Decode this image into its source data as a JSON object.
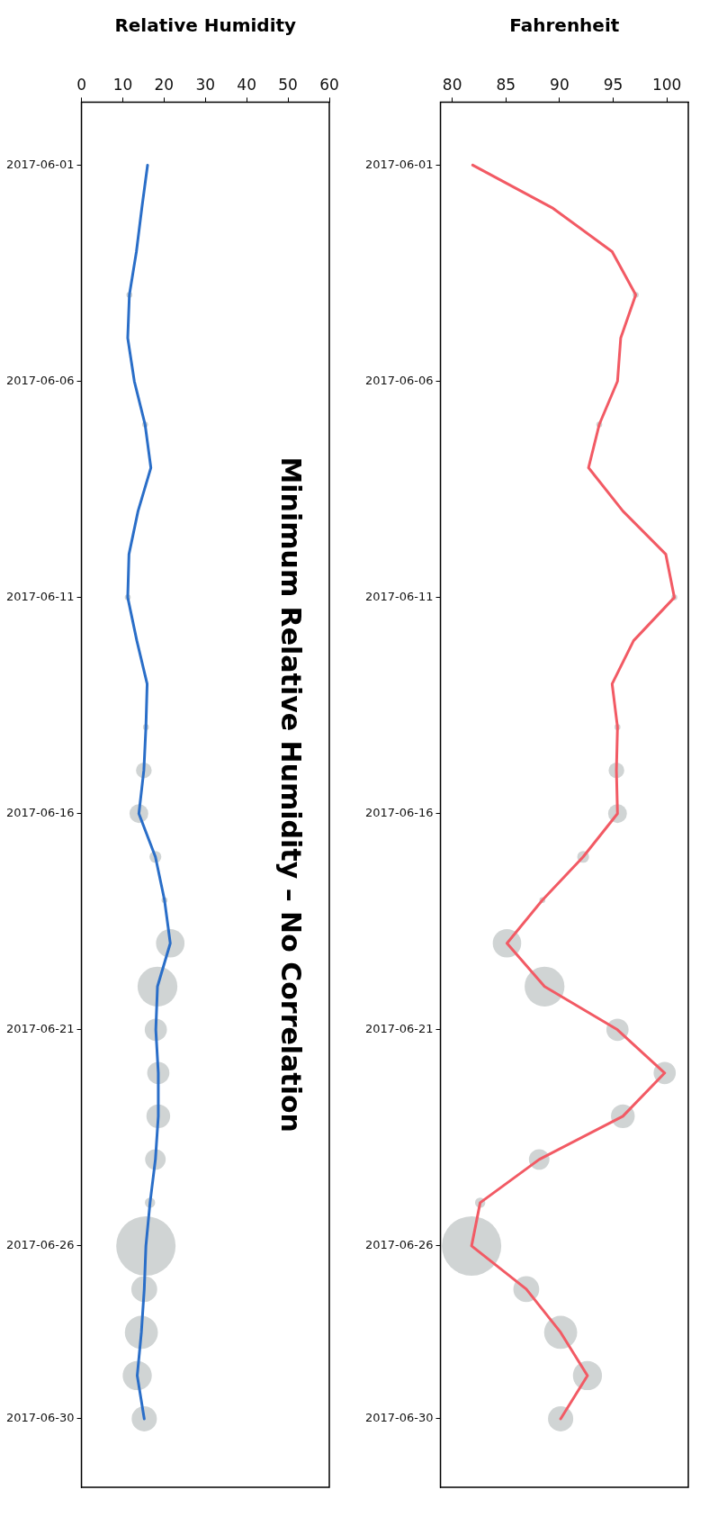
{
  "chart_data": [
    {
      "type": "line",
      "orientation": "horizontal",
      "xlabel": "Fahrenheit",
      "x": [
        "2017-06-01",
        "2017-06-02",
        "2017-06-03",
        "2017-06-04",
        "2017-06-05",
        "2017-06-06",
        "2017-06-07",
        "2017-06-08",
        "2017-06-09",
        "2017-06-10",
        "2017-06-11",
        "2017-06-12",
        "2017-06-13",
        "2017-06-14",
        "2017-06-15",
        "2017-06-16",
        "2017-06-17",
        "2017-06-18",
        "2017-06-19",
        "2017-06-20",
        "2017-06-21",
        "2017-06-22",
        "2017-06-23",
        "2017-06-24",
        "2017-06-25",
        "2017-06-26",
        "2017-06-27",
        "2017-06-28",
        "2017-06-29",
        "2017-06-30"
      ],
      "series": [
        {
          "type": "bubble",
          "color": "#d0d4d4",
          "values": [
            null,
            null,
            null,
            97.1,
            null,
            null,
            93.7,
            null,
            null,
            null,
            100.7,
            null,
            null,
            95.4,
            95.3,
            95.4,
            92.2,
            88.4,
            85.1,
            88.6,
            95.4,
            99.8,
            95.9,
            88.1,
            82.6,
            81.8,
            86.9,
            90.1,
            92.6,
            90.1
          ],
          "sizes": [
            null,
            null,
            null,
            0.01,
            null,
            null,
            0.01,
            null,
            null,
            null,
            0.01,
            null,
            null,
            0.01,
            0.07,
            0.1,
            0.04,
            0.01,
            0.23,
            0.45,
            0.14,
            0.14,
            0.16,
            0.12,
            0.03,
            1,
            0.19,
            0.31,
            0.24,
            0.18
          ]
        },
        {
          "color": "#f25a64",
          "marker": "none",
          "values": [
            81.9,
            89.4,
            94.9,
            97.1,
            95.7,
            95.4,
            93.7,
            92.7,
            95.9,
            99.9,
            100.7,
            96.9,
            94.9,
            95.4,
            95.3,
            95.4,
            92.2,
            88.4,
            85.1,
            88.6,
            95.4,
            99.8,
            95.9,
            88.1,
            82.6,
            81.8,
            86.9,
            90.1,
            92.6,
            90.1
          ]
        }
      ],
      "ylim": [
        "2017-07-01T14:00",
        "2017-05-30T13:00"
      ],
      "yticks": [
        "2017-06-01",
        "2017-06-06",
        "2017-06-11",
        "2017-06-16",
        "2017-06-21",
        "2017-06-26",
        "2017-06-30"
      ],
      "xlim": [
        78.9,
        102
      ],
      "xticks": [
        80,
        85,
        90,
        95,
        100
      ],
      "legend": false
    },
    {
      "type": "line",
      "orientation": "horizontal",
      "title": "Minimum Relative Humidity – No Correlation",
      "xlabel": "Relative Humidity",
      "x": [
        "2017-06-01",
        "2017-06-02",
        "2017-06-03",
        "2017-06-04",
        "2017-06-05",
        "2017-06-06",
        "2017-06-07",
        "2017-06-08",
        "2017-06-09",
        "2017-06-10",
        "2017-06-11",
        "2017-06-12",
        "2017-06-13",
        "2017-06-14",
        "2017-06-15",
        "2017-06-16",
        "2017-06-17",
        "2017-06-18",
        "2017-06-19",
        "2017-06-20",
        "2017-06-21",
        "2017-06-22",
        "2017-06-23",
        "2017-06-24",
        "2017-06-25",
        "2017-06-26",
        "2017-06-27",
        "2017-06-28",
        "2017-06-29",
        "2017-06-30"
      ],
      "series": [
        {
          "type": "bubble",
          "color": "#d0d4d4",
          "values": [
            null,
            null,
            null,
            11.6,
            null,
            null,
            15.4,
            null,
            null,
            null,
            11.2,
            null,
            null,
            15.6,
            15.1,
            13.9,
            17.9,
            20.1,
            21.5,
            18.4,
            18.0,
            18.6,
            18.6,
            17.9,
            16.6,
            15.6,
            15.2,
            14.5,
            13.5,
            15.2
          ],
          "sizes": [
            null,
            null,
            null,
            0.01,
            null,
            null,
            0.01,
            null,
            null,
            null,
            0.01,
            null,
            null,
            0.01,
            0.07,
            0.1,
            0.04,
            0.01,
            0.23,
            0.45,
            0.14,
            0.14,
            0.16,
            0.12,
            0.03,
            1,
            0.19,
            0.31,
            0.24,
            0.18
          ]
        },
        {
          "color": "#2a6ec8",
          "marker": "none",
          "values": [
            16.0,
            14.6,
            13.3,
            11.6,
            11.2,
            12.8,
            15.4,
            16.8,
            13.7,
            11.5,
            11.2,
            13.4,
            15.9,
            15.6,
            15.1,
            13.9,
            17.9,
            20.1,
            21.5,
            18.4,
            18.0,
            18.6,
            18.6,
            17.9,
            16.6,
            15.6,
            15.2,
            14.5,
            13.5,
            15.2
          ]
        }
      ],
      "ylim": [
        "2017-07-01T14:00",
        "2017-05-30T13:00"
      ],
      "yticks": [
        "2017-06-01",
        "2017-06-06",
        "2017-06-11",
        "2017-06-16",
        "2017-06-21",
        "2017-06-26",
        "2017-06-30"
      ],
      "xlim": [
        0,
        60
      ],
      "xticks": [
        0,
        10,
        20,
        30,
        40,
        50,
        60
      ],
      "legend": false
    }
  ]
}
